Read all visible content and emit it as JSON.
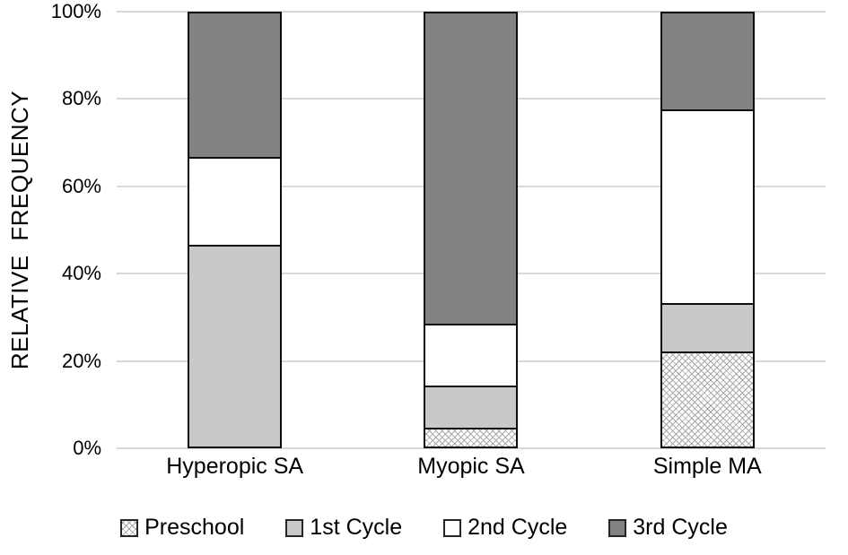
{
  "chart_data": {
    "type": "bar",
    "variant": "stacked-100-percent",
    "title": "",
    "xlabel": "",
    "ylabel": "RELATIVE FREQUENCY",
    "categories": [
      "Hyperopic SA",
      "Myopic SA",
      "Simple MA"
    ],
    "series": [
      {
        "name": "Preschool",
        "swatch": "crosshatch",
        "color": "#ffffff",
        "values": [
          0,
          4.8,
          22.2
        ]
      },
      {
        "name": "1st Cycle",
        "swatch": "solid",
        "color": "#c9c9c9",
        "values": [
          46.7,
          9.5,
          11.1
        ]
      },
      {
        "name": "2nd Cycle",
        "swatch": "solid",
        "color": "#ffffff",
        "values": [
          20.0,
          14.3,
          44.4
        ]
      },
      {
        "name": "3rd Cycle",
        "swatch": "solid",
        "color": "#828282",
        "values": [
          33.3,
          71.4,
          22.2
        ]
      }
    ],
    "y_ticks": [
      "0%",
      "20%",
      "40%",
      "60%",
      "80%",
      "100%"
    ],
    "ylim": [
      0,
      100
    ],
    "grid": true,
    "legend_position": "bottom",
    "colors": {
      "background": "#ffffff",
      "gridline": "#d9d9d9",
      "segment_border": "#0d0d0d",
      "crosshatch_line": "#a8a8a8",
      "text": "#000000"
    }
  }
}
